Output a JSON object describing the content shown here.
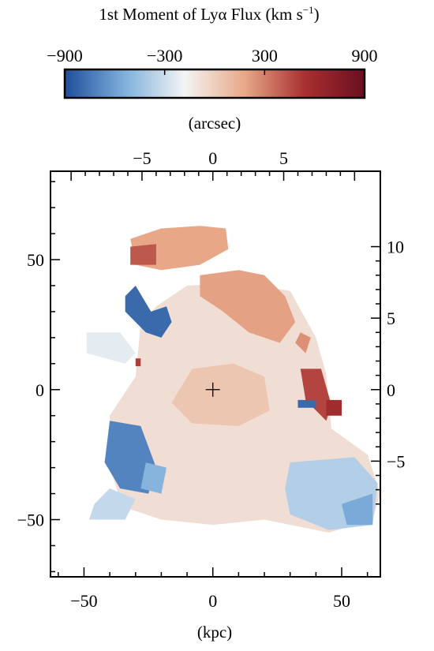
{
  "chart_data": {
    "type": "heatmap",
    "colorbar": {
      "title_main": "1st Moment of Ly",
      "title_greek": "α",
      "title_rest": " Flux (km s",
      "title_sup": "−1",
      "title_close": ")",
      "range": [
        -900,
        900
      ],
      "ticks": [
        -900,
        -300,
        300,
        900
      ],
      "tick_labels": [
        "−900",
        "−300",
        "300",
        "900"
      ],
      "colors": [
        "#1f4e9a",
        "#7fb0dc",
        "#f4f4f4",
        "#e8a888",
        "#a83030",
        "#6b0e22"
      ]
    },
    "axes": {
      "bottom_label": "(kpc)",
      "bottom_range": [
        -63,
        65
      ],
      "bottom_ticks": [
        -50,
        0,
        50
      ],
      "bottom_tick_labels": [
        "−50",
        "0",
        "50"
      ],
      "left_range": [
        -72,
        84
      ],
      "left_ticks": [
        -50,
        0,
        50
      ],
      "left_tick_labels": [
        "−50",
        "0",
        "50"
      ],
      "top_label": "(arcsec)",
      "top_ticks": [
        -5,
        0,
        5
      ],
      "top_tick_labels": [
        "−5",
        "0",
        "5"
      ],
      "right_ticks": [
        -5,
        0,
        5,
        10
      ],
      "right_tick_labels": [
        "−5",
        "0",
        "5",
        "10"
      ]
    },
    "center_marker": {
      "x": 0,
      "y": 0,
      "symbol": "+"
    },
    "regions": [
      {
        "note": "main body",
        "value": -70,
        "poly": [
          [
            -22,
            32
          ],
          [
            -10,
            40
          ],
          [
            10,
            41
          ],
          [
            30,
            38
          ],
          [
            40,
            20
          ],
          [
            44,
            6
          ],
          [
            46,
            -15
          ],
          [
            60,
            -25
          ],
          [
            65,
            -40
          ],
          [
            62,
            -50
          ],
          [
            45,
            -55
          ],
          [
            30,
            -52
          ],
          [
            20,
            -50
          ],
          [
            0,
            -52
          ],
          [
            -20,
            -50
          ],
          [
            -35,
            -45
          ],
          [
            -40,
            -30
          ],
          [
            -40,
            -10
          ],
          [
            -30,
            5
          ],
          [
            -28,
            25
          ]
        ]
      },
      {
        "note": "center warm",
        "value": 40,
        "poly": [
          [
            -8,
            8
          ],
          [
            8,
            10
          ],
          [
            20,
            5
          ],
          [
            22,
            -8
          ],
          [
            10,
            -14
          ],
          [
            -8,
            -13
          ],
          [
            -16,
            -5
          ]
        ]
      },
      {
        "note": "south-west blue",
        "value": -700,
        "poly": [
          [
            -40,
            -12
          ],
          [
            -28,
            -14
          ],
          [
            -22,
            -30
          ],
          [
            -25,
            -40
          ],
          [
            -36,
            -38
          ],
          [
            -42,
            -28
          ]
        ]
      },
      {
        "note": "south-west blue 2",
        "value": -520,
        "poly": [
          [
            -26,
            -28
          ],
          [
            -18,
            -30
          ],
          [
            -20,
            -40
          ],
          [
            -28,
            -38
          ]
        ]
      },
      {
        "note": "south-east blue",
        "value": -380,
        "poly": [
          [
            30,
            -28
          ],
          [
            55,
            -26
          ],
          [
            64,
            -36
          ],
          [
            62,
            -52
          ],
          [
            45,
            -54
          ],
          [
            30,
            -48
          ],
          [
            28,
            -38
          ]
        ]
      },
      {
        "note": "south-east deep",
        "value": -560,
        "poly": [
          [
            50,
            -44
          ],
          [
            62,
            -40
          ],
          [
            62,
            -52
          ],
          [
            52,
            -52
          ]
        ]
      },
      {
        "note": "west tail",
        "value": -230,
        "poly": [
          [
            -49,
            22
          ],
          [
            -36,
            22
          ],
          [
            -30,
            14
          ],
          [
            -34,
            10
          ],
          [
            -49,
            14
          ]
        ]
      },
      {
        "note": "lower-left tail",
        "value": -330,
        "poly": [
          [
            -40,
            -38
          ],
          [
            -30,
            -42
          ],
          [
            -34,
            -50
          ],
          [
            -48,
            -50
          ],
          [
            -46,
            -44
          ]
        ]
      },
      {
        "note": "north-west blue arm",
        "value": -800,
        "poly": [
          [
            -34,
            36
          ],
          [
            -30,
            40
          ],
          [
            -24,
            30
          ],
          [
            -18,
            32
          ],
          [
            -16,
            26
          ],
          [
            -20,
            20
          ],
          [
            -26,
            22
          ],
          [
            -34,
            30
          ]
        ]
      },
      {
        "note": "north arm",
        "value": 180,
        "poly": [
          [
            -32,
            58
          ],
          [
            -20,
            62
          ],
          [
            -5,
            63
          ],
          [
            5,
            62
          ],
          [
            6,
            54
          ],
          [
            -5,
            48
          ],
          [
            -20,
            46
          ],
          [
            -30,
            48
          ]
        ]
      },
      {
        "note": "north-west red",
        "value": 420,
        "poly": [
          [
            -32,
            55
          ],
          [
            -22,
            56
          ],
          [
            -22,
            48
          ],
          [
            -32,
            48
          ]
        ]
      },
      {
        "note": "north-east warm",
        "value": 200,
        "poly": [
          [
            -5,
            44
          ],
          [
            10,
            46
          ],
          [
            20,
            44
          ],
          [
            28,
            36
          ],
          [
            32,
            26
          ],
          [
            26,
            18
          ],
          [
            14,
            22
          ],
          [
            4,
            30
          ],
          [
            -5,
            36
          ]
        ]
      },
      {
        "note": "east red spur",
        "value": 480,
        "poly": [
          [
            34,
            8
          ],
          [
            42,
            8
          ],
          [
            46,
            -6
          ],
          [
            44,
            -12
          ],
          [
            36,
            -4
          ]
        ]
      },
      {
        "note": "far east red",
        "value": 580,
        "poly": [
          [
            44,
            -4
          ],
          [
            50,
            -4
          ],
          [
            50,
            -10
          ],
          [
            44,
            -10
          ]
        ]
      },
      {
        "note": "east blue bit",
        "value": -800,
        "poly": [
          [
            33,
            -4
          ],
          [
            40,
            -4
          ],
          [
            40,
            -7
          ],
          [
            33,
            -7
          ]
        ]
      },
      {
        "note": "thin east streak",
        "value": 250,
        "poly": [
          [
            34,
            22
          ],
          [
            38,
            20
          ],
          [
            36,
            14
          ],
          [
            32,
            18
          ]
        ]
      },
      {
        "note": "small red pixel",
        "value": 500,
        "poly": [
          [
            -30,
            12
          ],
          [
            -28,
            12
          ],
          [
            -28,
            9
          ],
          [
            -30,
            9
          ]
        ]
      }
    ]
  }
}
